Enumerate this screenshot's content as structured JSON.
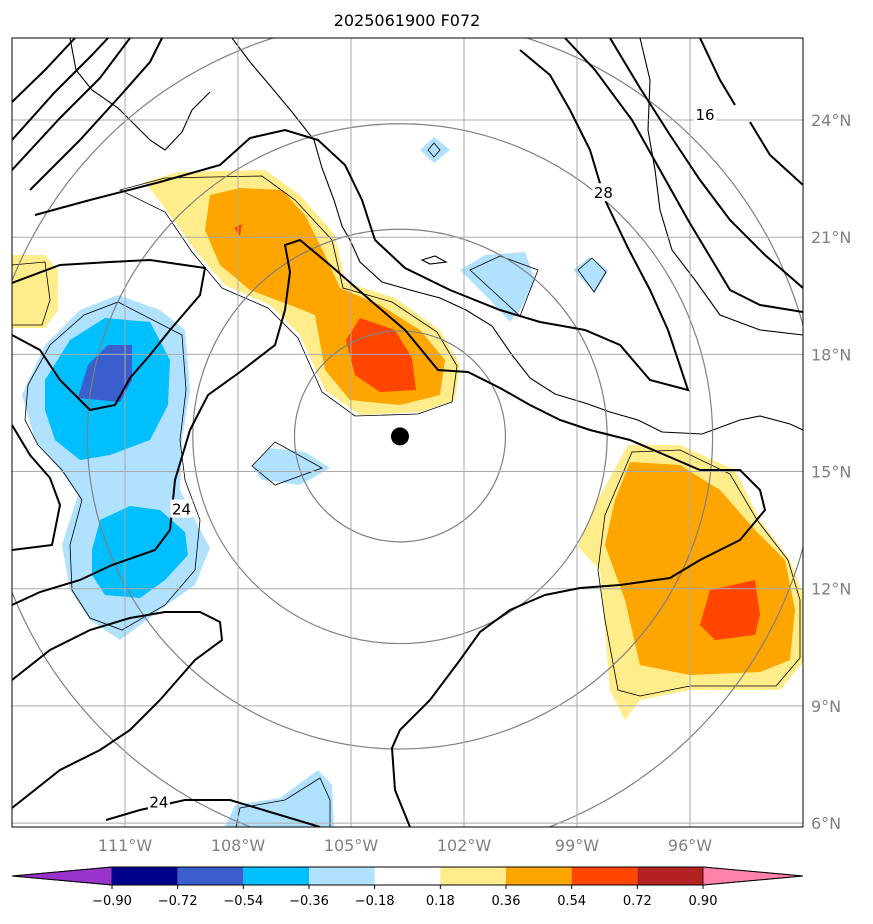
{
  "title": "2025061900 F072",
  "map": {
    "lon_range": [
      -114,
      -93
    ],
    "lat_range": [
      5.9,
      26.1
    ],
    "lon_ticks": [
      {
        "value": -111,
        "label": "111°W"
      },
      {
        "value": -108,
        "label": "108°W"
      },
      {
        "value": -105,
        "label": "105°W"
      },
      {
        "value": -102,
        "label": "102°W"
      },
      {
        "value": -99,
        "label": "99°W"
      },
      {
        "value": -96,
        "label": "96°W"
      }
    ],
    "lat_ticks": [
      {
        "value": 24,
        "label": "24°N"
      },
      {
        "value": 21,
        "label": "21°N"
      },
      {
        "value": 18,
        "label": "18°N"
      },
      {
        "value": 15,
        "label": "15°N"
      },
      {
        "value": 12,
        "label": "12°N"
      },
      {
        "value": 9,
        "label": "9°N"
      },
      {
        "value": 6,
        "label": "6°N"
      }
    ],
    "storm_center": {
      "lon": -103.7,
      "lat": 15.9
    },
    "range_ring_radii_deg": [
      2.8,
      5.5,
      8.3,
      11.1
    ],
    "contour_labels": [
      {
        "text": "16",
        "lon": -95.6,
        "lat": 24.1
      },
      {
        "text": "28",
        "lon": -98.3,
        "lat": 22.1
      },
      {
        "text": "24",
        "lon": -109.5,
        "lat": 14.0
      },
      {
        "text": "24",
        "lon": -110.1,
        "lat": 6.5
      }
    ]
  },
  "colorbar": {
    "ticks": [
      "−0.90",
      "−0.72",
      "−0.54",
      "−0.36",
      "−0.18",
      "0.18",
      "0.36",
      "0.54",
      "0.72",
      "0.90"
    ],
    "colors": [
      "#9933cc",
      "#00008b",
      "#3a5fcd",
      "#00bfff",
      "#b0e2ff",
      "#ffffff",
      "#ffec8b",
      "#ffa500",
      "#ff4500",
      "#b22222",
      "#ff82ab"
    ]
  }
}
